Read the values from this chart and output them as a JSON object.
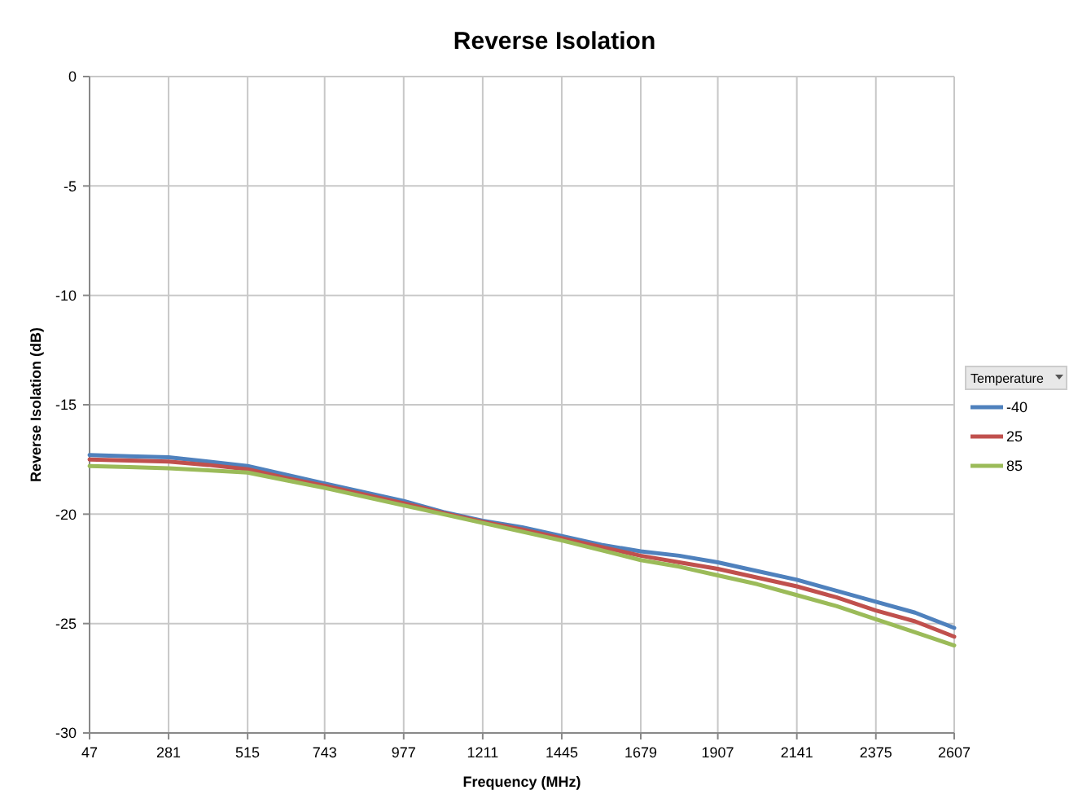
{
  "chart_data": {
    "type": "line",
    "title": "Reverse Isolation",
    "xlabel": "Frequency (MHz)",
    "ylabel": "Reverse Isolation  (dB)",
    "legend_title": "Temperature",
    "legend": "right",
    "grid": true,
    "marker": "none",
    "line_style": "solid",
    "x": [
      47,
      164,
      281,
      398,
      515,
      629,
      743,
      860,
      977,
      1094,
      1211,
      1328,
      1445,
      1562,
      1679,
      1793,
      1907,
      2024,
      2141,
      2258,
      2375,
      2491,
      2607
    ],
    "xlim": [
      47,
      2607
    ],
    "xticks": [
      47,
      281,
      515,
      743,
      977,
      1211,
      1445,
      1679,
      1907,
      2141,
      2375,
      2607
    ],
    "ylim": [
      -30,
      0
    ],
    "yticks": [
      -30,
      -25,
      -20,
      -15,
      -10,
      -5,
      0
    ],
    "series": [
      {
        "name": "-40",
        "color": "#4f81bd",
        "values": [
          -17.3,
          -17.35,
          -17.4,
          -17.6,
          -17.8,
          -18.2,
          -18.6,
          -19.0,
          -19.4,
          -19.9,
          -20.3,
          -20.6,
          -21.0,
          -21.4,
          -21.7,
          -21.9,
          -22.2,
          -22.6,
          -23.0,
          -23.5,
          -24.0,
          -24.5,
          -25.2
        ]
      },
      {
        "name": "25",
        "color": "#c0504d",
        "values": [
          -17.5,
          -17.55,
          -17.6,
          -17.75,
          -17.95,
          -18.35,
          -18.7,
          -19.1,
          -19.5,
          -19.95,
          -20.35,
          -20.7,
          -21.1,
          -21.5,
          -21.9,
          -22.2,
          -22.5,
          -22.9,
          -23.3,
          -23.8,
          -24.4,
          -24.9,
          -25.6
        ]
      },
      {
        "name": "85",
        "color": "#9bbb59",
        "values": [
          -17.8,
          -17.85,
          -17.9,
          -18.0,
          -18.1,
          -18.45,
          -18.8,
          -19.2,
          -19.6,
          -20.0,
          -20.4,
          -20.8,
          -21.2,
          -21.65,
          -22.1,
          -22.4,
          -22.8,
          -23.2,
          -23.7,
          -24.2,
          -24.8,
          -25.4,
          -26.0
        ]
      }
    ]
  }
}
